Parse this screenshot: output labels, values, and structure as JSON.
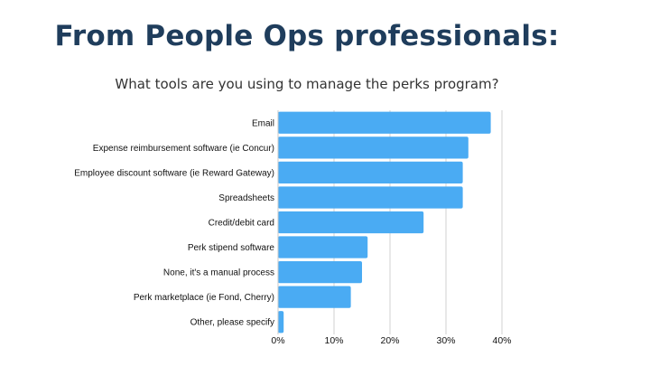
{
  "header": {
    "title": "From People Ops professionals:",
    "subtitle": "What tools are you using to manage the perks program?"
  },
  "chart_data": {
    "type": "bar",
    "orientation": "horizontal",
    "categories": [
      "Email",
      "Expense reimbursement software (ie Concur)",
      "Employee discount software (ie Reward Gateway)",
      "Spreadsheets",
      "Credit/debit card",
      "Perk stipend software",
      "None, it's a manual process",
      "Perk marketplace (ie Fond, Cherry)",
      "Other, please specify"
    ],
    "values": [
      38,
      34,
      33,
      33,
      26,
      16,
      15,
      13,
      1
    ],
    "xlim": [
      0,
      40
    ],
    "xticks": [
      "0%",
      "10%",
      "20%",
      "30%",
      "40%"
    ],
    "xtick_values": [
      0,
      10,
      20,
      30,
      40
    ],
    "bar_color": "#4aabf3",
    "gridline_color": "#d0d0d0",
    "grid": true
  },
  "colors": {
    "title": "#1f3d5c",
    "bar": "#4aabf3"
  }
}
